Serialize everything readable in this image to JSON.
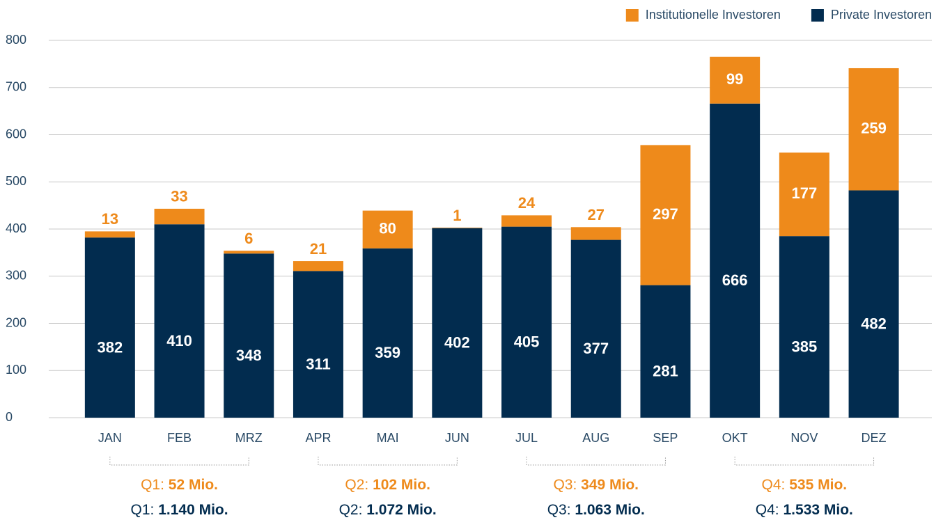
{
  "chart_data": {
    "type": "stacked_bar",
    "categories": [
      "JAN",
      "FEB",
      "MRZ",
      "APR",
      "MAI",
      "JUN",
      "JUL",
      "AUG",
      "SEP",
      "OKT",
      "NOV",
      "DEZ"
    ],
    "series": [
      {
        "name": "Private Investoren",
        "color": "#022c4f",
        "values": [
          382,
          410,
          348,
          311,
          359,
          402,
          405,
          377,
          281,
          666,
          385,
          482
        ]
      },
      {
        "name": "Institutionelle Investoren",
        "color": "#ee8a1b",
        "values": [
          13,
          33,
          6,
          21,
          80,
          1,
          24,
          27,
          297,
          99,
          177,
          259
        ]
      }
    ],
    "ylim": [
      0,
      800
    ],
    "yticks": [
      0,
      100,
      200,
      300,
      400,
      500,
      600,
      700,
      800
    ],
    "grid": true,
    "legend": "top-right",
    "quarters": [
      {
        "label": "Q1:",
        "institutional": "52 Mio.",
        "private": "1.140 Mio."
      },
      {
        "label": "Q2:",
        "institutional": "102 Mio.",
        "private": "1.072 Mio."
      },
      {
        "label": "Q3:",
        "institutional": "349 Mio.",
        "private": "1.063 Mio."
      },
      {
        "label": "Q4:",
        "institutional": "535 Mio.",
        "private": "1.533 Mio."
      }
    ]
  }
}
